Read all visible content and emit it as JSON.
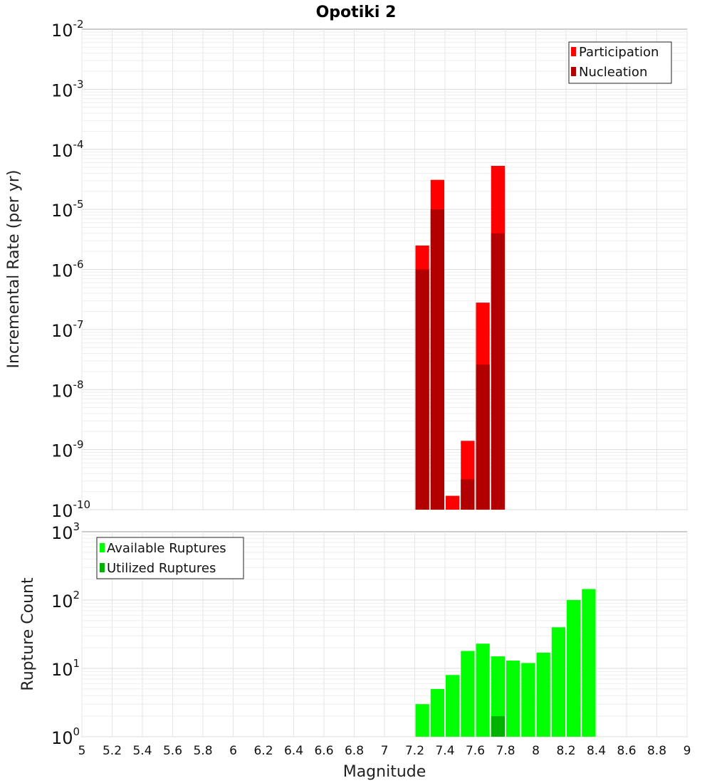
{
  "chart_data": [
    {
      "type": "bar",
      "title": "Opotiki 2",
      "xlabel": "",
      "ylabel": "Incremental Rate (per yr)",
      "y_scale": "log",
      "ylim_exponents": [
        -10,
        -2
      ],
      "xlim": [
        5,
        9
      ],
      "grid": true,
      "legend_position": "top-right",
      "bar_width": 0.1,
      "series": [
        {
          "name": "Participation",
          "color": "#ff0000",
          "points": [
            {
              "x": 7.25,
              "y": 2.5e-06
            },
            {
              "x": 7.35,
              "y": 3.1e-05
            },
            {
              "x": 7.45,
              "y": 1.7e-10
            },
            {
              "x": 7.55,
              "y": 1.4e-09
            },
            {
              "x": 7.65,
              "y": 2.8e-07
            },
            {
              "x": 7.75,
              "y": 5.3e-05
            }
          ]
        },
        {
          "name": "Nucleation",
          "color": "#b20000",
          "points": [
            {
              "x": 7.25,
              "y": 1e-06
            },
            {
              "x": 7.35,
              "y": 1e-05
            },
            {
              "x": 7.55,
              "y": 3.2e-10
            },
            {
              "x": 7.65,
              "y": 2.6e-08
            },
            {
              "x": 7.75,
              "y": 4e-06
            }
          ]
        }
      ]
    },
    {
      "type": "bar",
      "title": "",
      "xlabel": "Magnitude",
      "ylabel": "Rupture Count",
      "y_scale": "log",
      "ylim_exponents": [
        0,
        3
      ],
      "xlim": [
        5,
        9
      ],
      "grid": true,
      "legend_position": "top-left",
      "bar_width": 0.1,
      "x_ticks": [
        "5",
        "5.2",
        "5.4",
        "5.6",
        "5.8",
        "6",
        "6.2",
        "6.4",
        "6.6",
        "6.8",
        "7",
        "7.2",
        "7.4",
        "7.6",
        "7.8",
        "8",
        "8.2",
        "8.4",
        "8.6",
        "8.8",
        "9"
      ],
      "series": [
        {
          "name": "Available Ruptures",
          "color": "#00ff00",
          "points": [
            {
              "x": 6.85,
              "y": 1
            },
            {
              "x": 7.15,
              "y": 1
            },
            {
              "x": 7.25,
              "y": 3
            },
            {
              "x": 7.35,
              "y": 5
            },
            {
              "x": 7.45,
              "y": 8
            },
            {
              "x": 7.55,
              "y": 18
            },
            {
              "x": 7.65,
              "y": 23
            },
            {
              "x": 7.75,
              "y": 15
            },
            {
              "x": 7.85,
              "y": 13
            },
            {
              "x": 7.95,
              "y": 12
            },
            {
              "x": 8.05,
              "y": 17
            },
            {
              "x": 8.15,
              "y": 40
            },
            {
              "x": 8.25,
              "y": 100
            },
            {
              "x": 8.35,
              "y": 145
            }
          ]
        },
        {
          "name": "Utilized Ruptures",
          "color": "#00b200",
          "points": [
            {
              "x": 7.25,
              "y": 1
            },
            {
              "x": 7.35,
              "y": 1
            },
            {
              "x": 7.45,
              "y": 1
            },
            {
              "x": 7.55,
              "y": 1
            },
            {
              "x": 7.65,
              "y": 1
            },
            {
              "x": 7.75,
              "y": 2
            }
          ]
        }
      ]
    }
  ]
}
